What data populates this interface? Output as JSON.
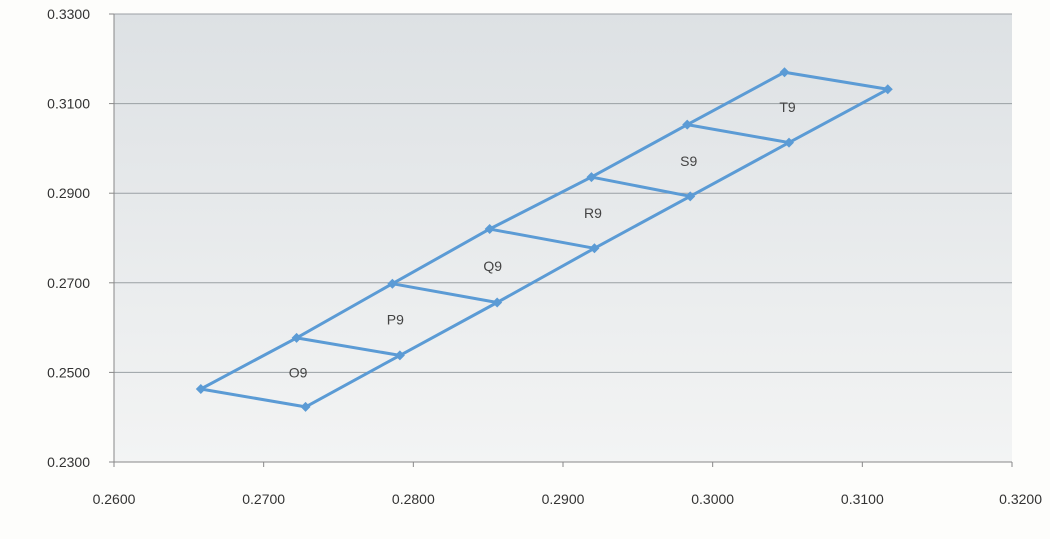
{
  "chart_data": {
    "type": "scatter",
    "title": "",
    "xlabel": "",
    "ylabel": "",
    "xlim": [
      0.26,
      0.32
    ],
    "ylim": [
      0.23,
      0.33
    ],
    "x_ticks": [
      "0.2600",
      "0.2700",
      "0.2800",
      "0.2900",
      "0.3000",
      "0.3100",
      "0.3200"
    ],
    "y_ticks": [
      "0.2300",
      "0.2500",
      "0.2700",
      "0.2900",
      "0.3100",
      "0.3300"
    ],
    "x_tick_values": [
      0.26,
      0.27,
      0.28,
      0.29,
      0.3,
      0.31,
      0.32
    ],
    "y_tick_values": [
      0.23,
      0.25,
      0.27,
      0.29,
      0.31,
      0.33
    ],
    "grid": "horizontal",
    "legend": "none",
    "line_color": "#5b9bd5",
    "plot_bg_top": "#dde1e4",
    "plot_bg_bottom": "#f3f4f4",
    "upper_edge": [
      {
        "x": 0.2658,
        "y": 0.2463
      },
      {
        "x": 0.2722,
        "y": 0.2577
      },
      {
        "x": 0.2786,
        "y": 0.2698
      },
      {
        "x": 0.2851,
        "y": 0.282
      },
      {
        "x": 0.2919,
        "y": 0.2936
      },
      {
        "x": 0.2983,
        "y": 0.3053
      },
      {
        "x": 0.3048,
        "y": 0.317
      }
    ],
    "lower_edge": [
      {
        "x": 0.2728,
        "y": 0.2423
      },
      {
        "x": 0.2791,
        "y": 0.2538
      },
      {
        "x": 0.2856,
        "y": 0.2656
      },
      {
        "x": 0.2921,
        "y": 0.2777
      },
      {
        "x": 0.2985,
        "y": 0.2893
      },
      {
        "x": 0.3051,
        "y": 0.3013
      },
      {
        "x": 0.3117,
        "y": 0.3132
      }
    ],
    "bins": [
      {
        "label": "O9",
        "x": 0.2723,
        "y": 0.25
      },
      {
        "label": "P9",
        "x": 0.2788,
        "y": 0.2618
      },
      {
        "label": "Q9",
        "x": 0.2853,
        "y": 0.2737
      },
      {
        "label": "R9",
        "x": 0.292,
        "y": 0.2856
      },
      {
        "label": "S9",
        "x": 0.2984,
        "y": 0.2972
      },
      {
        "label": "T9",
        "x": 0.305,
        "y": 0.3092
      }
    ]
  }
}
